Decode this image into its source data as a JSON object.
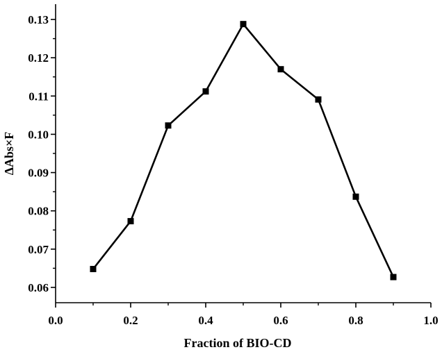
{
  "chart_data": {
    "type": "line",
    "title": "",
    "xlabel": "Fraction of BIO-CD",
    "ylabel": "ΔAbs×F",
    "xlim": [
      0.0,
      1.0
    ],
    "ylim": [
      0.056,
      0.134
    ],
    "x_ticks": [
      0.0,
      0.2,
      0.4,
      0.6,
      0.8,
      1.0
    ],
    "x_tick_labels": [
      "0.0",
      "0.2",
      "0.4",
      "0.6",
      "0.8",
      "1.0"
    ],
    "y_ticks": [
      0.06,
      0.07,
      0.08,
      0.09,
      0.1,
      0.11,
      0.12,
      0.13
    ],
    "y_tick_labels": [
      "0.06",
      "0.07",
      "0.08",
      "0.09",
      "0.10",
      "0.11",
      "0.12",
      "0.13"
    ],
    "grid": false,
    "legend": "none",
    "marker": "square",
    "series": [
      {
        "name": "ΔAbs×F",
        "color": "#000000",
        "x": [
          0.1,
          0.2,
          0.3,
          0.4,
          0.5,
          0.6,
          0.7,
          0.8,
          0.9
        ],
        "values": [
          0.0648,
          0.0773,
          0.1023,
          0.1112,
          0.1288,
          0.117,
          0.1091,
          0.0837,
          0.0627
        ]
      }
    ]
  }
}
